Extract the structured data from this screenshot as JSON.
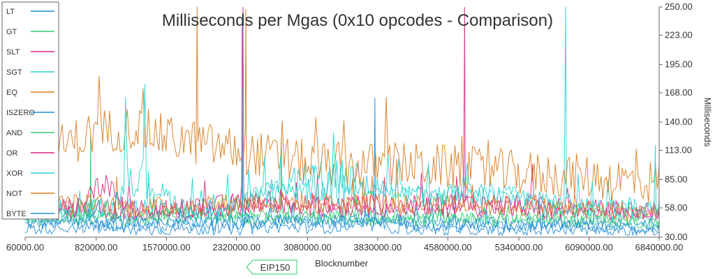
{
  "chart_data": {
    "type": "line",
    "title": "Milliseconds per Mgas (0x10 opcodes - Comparison)",
    "xlabel": "Blocknumber",
    "ylabel": "Milliseconds",
    "xlim": [
      60000,
      6840000
    ],
    "ylim": [
      30,
      250
    ],
    "x_ticks": [
      "60000.00",
      "820000.00",
      "1570000.00",
      "2320000.00",
      "3080000.00",
      "3830000.00",
      "4580000.00",
      "5340000.00",
      "6090000.00",
      "6840000.00"
    ],
    "x_tick_values": [
      60000,
      820000,
      1570000,
      2320000,
      3080000,
      3830000,
      4580000,
      5340000,
      6090000,
      6840000
    ],
    "y_ticks": [
      "30.00",
      "58.00",
      "85.00",
      "113.00",
      "140.00",
      "168.00",
      "195.00",
      "223.00",
      "250.00"
    ],
    "y_tick_values": [
      30,
      58,
      85,
      113,
      140,
      168,
      195,
      223,
      250
    ],
    "grid": false,
    "legend": "left",
    "annotation": {
      "label": "EIP150",
      "x": 2463000
    },
    "series": [
      {
        "name": "LT",
        "color": "#1f8fd6",
        "x": [
          60000,
          600000,
          1200000,
          1800000,
          2300000,
          2700000,
          3200000,
          3700000,
          4200000,
          4700000,
          5200000,
          5700000,
          6200000,
          6840000
        ],
        "values": [
          42,
          44,
          40,
          42,
          41,
          44,
          43,
          46,
          42,
          41,
          40,
          41,
          40,
          38
        ],
        "spikes": [
          {
            "x": 2380000,
            "value": 240
          },
          {
            "x": 3800000,
            "value": 163
          }
        ]
      },
      {
        "name": "GT",
        "color": "#2ecc71",
        "x": [
          60000,
          600000,
          1200000,
          1800000,
          2300000,
          2700000,
          3200000,
          3700000,
          4200000,
          4700000,
          5200000,
          5700000,
          6200000,
          6840000
        ],
        "values": [
          50,
          52,
          49,
          53,
          50,
          52,
          51,
          50,
          49,
          50,
          48,
          49,
          48,
          46
        ],
        "spikes": [
          {
            "x": 760000,
            "value": 128
          },
          {
            "x": 2800000,
            "value": 125
          }
        ]
      },
      {
        "name": "SLT",
        "color": "#d9277e",
        "x": [
          60000,
          600000,
          1200000,
          1800000,
          2300000,
          2700000,
          3200000,
          3700000,
          4200000,
          4700000,
          5200000,
          5700000,
          6200000,
          6840000
        ],
        "values": [
          58,
          60,
          55,
          58,
          62,
          64,
          60,
          62,
          60,
          64,
          62,
          58,
          56,
          55
        ],
        "spikes": [
          {
            "x": 2390000,
            "value": 250
          },
          {
            "x": 4760000,
            "value": 250
          }
        ]
      },
      {
        "name": "SGT",
        "color": "#26d0ce",
        "x": [
          60000,
          600000,
          1200000,
          1800000,
          2300000,
          2700000,
          3200000,
          3700000,
          4200000,
          4700000,
          5200000,
          5700000,
          6200000,
          6840000
        ],
        "values": [
          55,
          56,
          60,
          52,
          58,
          76,
          85,
          80,
          70,
          72,
          70,
          62,
          60,
          58
        ],
        "spikes": [
          {
            "x": 5840000,
            "value": 250
          }
        ]
      },
      {
        "name": "EQ",
        "color": "#d87a1c",
        "x": [
          60000,
          400000,
          800000,
          1200000,
          1600000,
          2000000,
          2400000,
          2800000,
          3200000,
          3600000,
          4000000,
          4400000,
          4800000,
          5200000,
          5600000,
          6000000,
          6400000,
          6840000
        ],
        "values": [
          100,
          115,
          130,
          135,
          125,
          118,
          112,
          105,
          100,
          98,
          100,
          98,
          95,
          92,
          90,
          88,
          85,
          82
        ],
        "spikes": [
          {
            "x": 1900000,
            "value": 250
          },
          {
            "x": 2420000,
            "value": 248
          }
        ]
      },
      {
        "name": "ISZERO",
        "color": "#1f8fd6",
        "x": [
          60000,
          600000,
          1200000,
          1800000,
          2300000,
          2700000,
          3200000,
          3700000,
          4200000,
          4700000,
          5200000,
          5700000,
          6200000,
          6840000
        ],
        "values": [
          38,
          40,
          37,
          38,
          37,
          40,
          39,
          41,
          38,
          37,
          36,
          37,
          36,
          35
        ],
        "spikes": []
      },
      {
        "name": "AND",
        "color": "#2ecc71",
        "x": [
          60000,
          600000,
          1200000,
          1800000,
          2300000,
          2700000,
          3200000,
          3700000,
          4200000,
          4700000,
          5200000,
          5700000,
          6200000,
          6840000
        ],
        "values": [
          47,
          48,
          46,
          50,
          48,
          49,
          48,
          47,
          46,
          47,
          46,
          46,
          45,
          44
        ],
        "spikes": []
      },
      {
        "name": "OR",
        "color": "#d9277e",
        "x": [
          60000,
          600000,
          900000,
          1200000,
          1800000,
          2300000,
          2700000,
          3200000,
          3700000,
          4200000,
          4700000,
          5200000,
          5700000,
          6200000,
          6840000
        ],
        "values": [
          54,
          56,
          84,
          52,
          56,
          60,
          62,
          58,
          60,
          58,
          60,
          58,
          55,
          54,
          52
        ],
        "spikes": []
      },
      {
        "name": "XOR",
        "color": "#26d0ce",
        "x": [
          60000,
          600000,
          1000000,
          1200000,
          1800000,
          2300000,
          2700000,
          3200000,
          3700000,
          4200000,
          4700000,
          5200000,
          5700000,
          6200000,
          6840000
        ],
        "values": [
          52,
          54,
          60,
          92,
          56,
          62,
          72,
          82,
          78,
          68,
          70,
          68,
          60,
          58,
          56
        ],
        "spikes": [
          {
            "x": 6800000,
            "value": 118
          }
        ]
      },
      {
        "name": "NOT",
        "color": "#d87a1c",
        "x": [
          60000,
          600000,
          1200000,
          1800000,
          2300000,
          2700000,
          3200000,
          3700000,
          4200000,
          4700000,
          5200000,
          5700000,
          6200000,
          6840000
        ],
        "values": [
          60,
          62,
          58,
          60,
          62,
          64,
          62,
          63,
          60,
          62,
          60,
          58,
          56,
          54
        ],
        "spikes": []
      },
      {
        "name": "BYTE",
        "color": "#1f8fd6",
        "x": [
          60000,
          600000,
          1200000,
          1800000,
          2300000,
          2700000,
          3200000,
          3700000,
          4200000,
          4700000,
          5200000,
          5700000,
          6200000,
          6840000
        ],
        "values": [
          45,
          46,
          44,
          46,
          45,
          47,
          46,
          48,
          45,
          44,
          43,
          44,
          43,
          42
        ],
        "spikes": []
      }
    ]
  }
}
